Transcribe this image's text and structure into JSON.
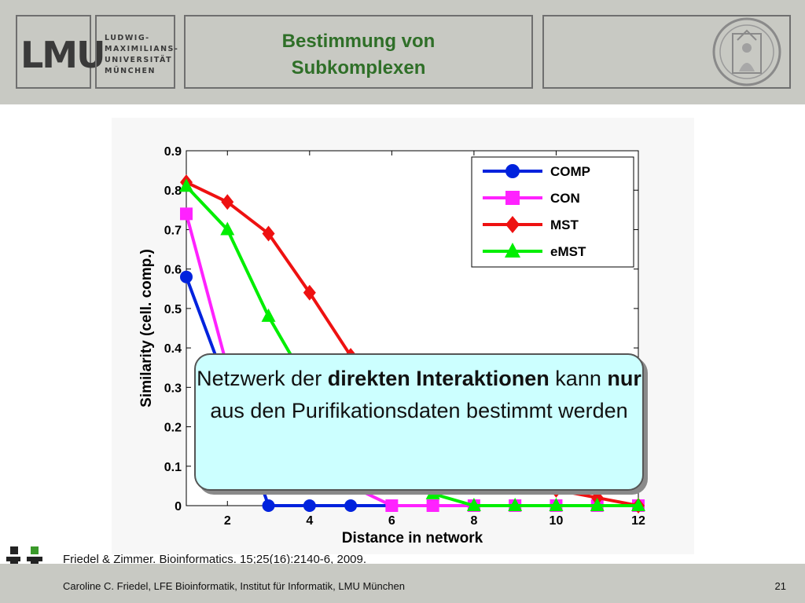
{
  "header": {
    "logo_text": "LMU",
    "university_lines": [
      "LUDWIG-",
      "MAXIMILIANS-",
      "UNIVERSITÄT",
      "MÜNCHEN"
    ],
    "title_lines": [
      "Bestimmung von",
      "Subkomplexen"
    ]
  },
  "chart_data": {
    "type": "line",
    "xlabel": "Distance in network",
    "ylabel": "Similarity (cell. comp.)",
    "xlim": [
      1,
      12
    ],
    "ylim": [
      0,
      0.9
    ],
    "x_ticks": [
      2,
      4,
      6,
      8,
      10,
      12
    ],
    "y_ticks": [
      0,
      0.1,
      0.2,
      0.3,
      0.4,
      0.5,
      0.6,
      0.7,
      0.8,
      0.9
    ],
    "y_tick_labels": [
      "0",
      "0.1",
      "0.2",
      "0.3",
      "0.4",
      "0.5",
      "0.6",
      "0.7",
      "0.8",
      "0.9"
    ],
    "legend_position": "top-right",
    "grid": false,
    "x": [
      1,
      2,
      3,
      4,
      5,
      6,
      7,
      8,
      9,
      10,
      11,
      12
    ],
    "series": [
      {
        "name": "COMP",
        "color": "#0022dd",
        "marker": "circle",
        "values": [
          0.58,
          0.3,
          0,
          0,
          0,
          0,
          0,
          0,
          0,
          0,
          0,
          0
        ]
      },
      {
        "name": "CON",
        "color": "#ff22ff",
        "marker": "square",
        "values": [
          0.74,
          0.35,
          0.25,
          0.12,
          0.05,
          0,
          0,
          0,
          0,
          0,
          0,
          0
        ]
      },
      {
        "name": "MST",
        "color": "#ee1111",
        "marker": "diamond",
        "values": [
          0.82,
          0.77,
          0.69,
          0.54,
          0.38,
          0.24,
          0.16,
          0.1,
          0.06,
          0.04,
          0.02,
          0
        ]
      },
      {
        "name": "eMST",
        "color": "#00ee00",
        "marker": "triangle",
        "values": [
          0.81,
          0.7,
          0.48,
          0.3,
          0.17,
          0.08,
          0.03,
          0,
          0,
          0,
          0,
          0
        ]
      }
    ]
  },
  "callout": {
    "parts": [
      {
        "text": "Netzwerk der ",
        "bold": false
      },
      {
        "text": "direkten",
        "bold": true
      },
      {
        "text": " ",
        "bold": false
      },
      {
        "text": "Interaktionen",
        "bold": true
      },
      {
        "text": " kann ",
        "bold": false
      },
      {
        "text": "nur",
        "bold": true
      },
      {
        "text": " aus den Purifikationsdaten bestimmt werden",
        "bold": false
      }
    ]
  },
  "citation": "Friedel & Zimmer. Bioinformatics. 15;25(16):2140-6, 2009.",
  "footer": {
    "text": "Caroline C. Friedel, LFE Bioinformatik, Institut für Informatik, LMU München",
    "page_number": "21"
  }
}
